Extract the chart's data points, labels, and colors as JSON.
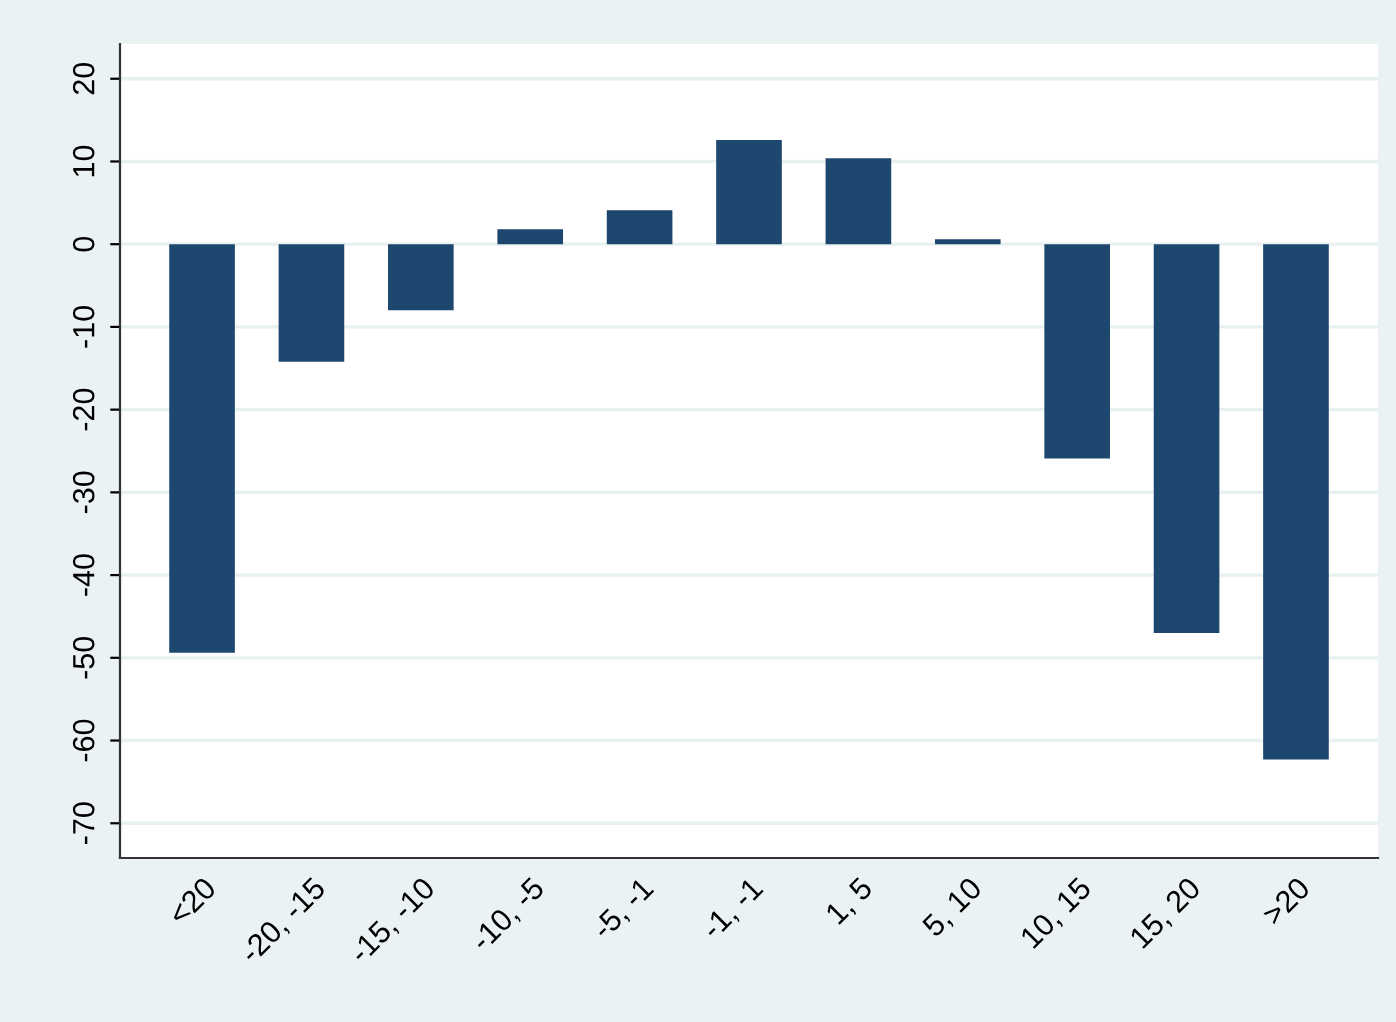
{
  "chart_data": {
    "type": "bar",
    "categories": [
      "<20",
      "-20, -15",
      "-15, -10",
      "-10, -5",
      "-5, -1",
      "-1, -1",
      "1, 5",
      "5, 10",
      "10, 15",
      "15, 20",
      ">20"
    ],
    "values": [
      -49.4,
      -14.2,
      -8.0,
      1.8,
      4.1,
      12.6,
      10.4,
      0.6,
      -25.9,
      -47.0,
      -62.3
    ],
    "color": "#1d476e",
    "ylim": [
      -74.2,
      24.2
    ],
    "yticks": [
      -70,
      -60,
      -50,
      -40,
      -30,
      -20,
      -10,
      0,
      10,
      20
    ],
    "grid": "y"
  }
}
